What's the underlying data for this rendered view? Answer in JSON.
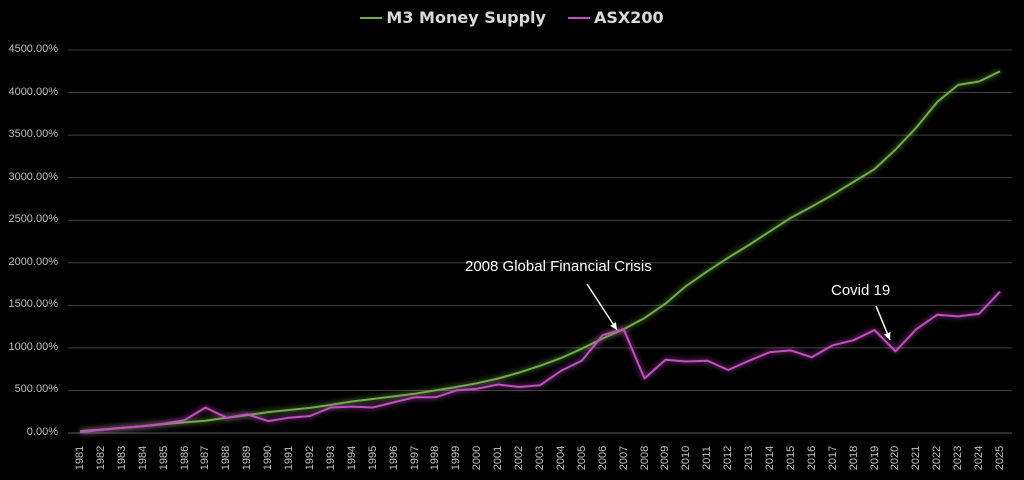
{
  "legend": [
    {
      "label": "M3 Money Supply",
      "color": "#70ad47"
    },
    {
      "label": "ASX200",
      "color": "#c04fc0"
    }
  ],
  "annotations": [
    {
      "text": "2008 Global Financial Crisis",
      "target_year": 2007
    },
    {
      "text": "Covid 19",
      "target_year": 2020
    }
  ],
  "chart_data": {
    "type": "line",
    "title": "",
    "xlabel": "",
    "ylabel": "",
    "ylim": [
      0,
      4500
    ],
    "y_ticks": [
      "0.00%",
      "500.00%",
      "1000.00%",
      "1500.00%",
      "2000.00%",
      "2500.00%",
      "3000.00%",
      "3500.00%",
      "4000.00%",
      "4500.00%"
    ],
    "grid": true,
    "legend_position": "top",
    "x": [
      "1981",
      "1982",
      "1983",
      "1984",
      "1985",
      "1986",
      "1987",
      "1988",
      "1989",
      "1990",
      "1991",
      "1992",
      "1993",
      "1994",
      "1995",
      "1996",
      "1997",
      "1998",
      "1999",
      "2000",
      "2001",
      "2002",
      "2003",
      "2004",
      "2005",
      "2006",
      "2007",
      "2008",
      "2009",
      "2010",
      "2011",
      "2012",
      "2013",
      "2014",
      "2015",
      "2016",
      "2017",
      "2018",
      "2019",
      "2020",
      "2021",
      "2022",
      "2023",
      "2024",
      "2025"
    ],
    "series": [
      {
        "name": "M3 Money Supply",
        "color": "#70ad47",
        "values": [
          20,
          40,
          60,
          80,
          105,
          125,
          145,
          180,
          210,
          245,
          270,
          295,
          330,
          370,
          400,
          430,
          460,
          500,
          540,
          585,
          640,
          710,
          790,
          880,
          990,
          1110,
          1220,
          1350,
          1520,
          1730,
          1900,
          2060,
          2210,
          2370,
          2530,
          2660,
          2800,
          2950,
          3100,
          3330,
          3590,
          3890,
          4090,
          4130,
          4250
        ]
      },
      {
        "name": "ASX200",
        "color": "#c04fc0",
        "values": [
          10,
          35,
          60,
          80,
          110,
          150,
          300,
          180,
          220,
          140,
          180,
          200,
          300,
          310,
          300,
          360,
          420,
          420,
          500,
          520,
          570,
          540,
          560,
          730,
          850,
          1150,
          1220,
          640,
          860,
          840,
          850,
          740,
          850,
          950,
          970,
          890,
          1030,
          1090,
          1210,
          960,
          1220,
          1390,
          1370,
          1400,
          1660
        ]
      }
    ]
  }
}
